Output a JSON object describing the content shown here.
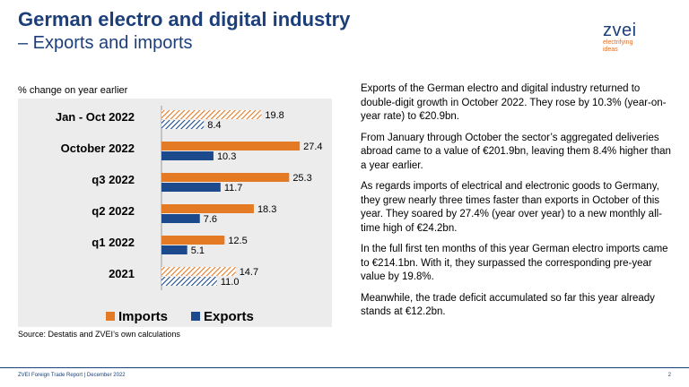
{
  "header": {
    "title": "German electro and digital industry",
    "subtitle": "– Exports and imports"
  },
  "logo": {
    "word": "zvei",
    "tagline_1": "electrifying",
    "tagline_2": "ideas",
    "color": "#1c3f7a",
    "tagline_color": "#e0702a"
  },
  "chart_caption": "% change on year earlier",
  "chart_data": {
    "type": "bar",
    "orientation": "horizontal",
    "categories": [
      "Jan - Oct 2022",
      "October 2022",
      "q3 2022",
      "q2 2022",
      "q1 2022",
      "2021"
    ],
    "series": [
      {
        "name": "Imports",
        "values": [
          19.8,
          27.4,
          25.3,
          18.3,
          12.5,
          14.7
        ],
        "color": "#e57a24",
        "hatched": [
          true,
          false,
          false,
          false,
          false,
          true
        ]
      },
      {
        "name": "Exports",
        "values": [
          8.4,
          10.3,
          11.7,
          7.6,
          5.1,
          11.0
        ],
        "color": "#1c4a8c",
        "hatched": [
          true,
          false,
          false,
          false,
          false,
          true
        ]
      }
    ],
    "xlim": [
      0,
      32
    ],
    "grid": false,
    "legend_position": "bottom",
    "data_labels": true
  },
  "source": "Source: Destatis and ZVEI’s own calculations",
  "paragraphs": [
    "Exports of the German electro and digital industry returned to double-digit growth in October 2022. They rose by 10.3% (year-on-year rate) to €20.9bn.",
    "From January through October the sector’s aggregated deliveries abroad came to a value of €201.9bn, leaving them 8.4% higher than a year earlier.",
    "As regards imports of electrical and electronic goods to Germany, they grew nearly three times faster than exports in October of this year. They soared by 27.4% (year over year) to a new monthly all-time high of €24.2bn.",
    "In the full first ten months of this year German electro imports came to €214.1bn. With it, they surpassed the corresponding pre-year value by 19.8%.",
    "Meanwhile, the trade deficit accumulated so far this year already stands at €12.2bn."
  ],
  "footer": {
    "left": "ZVEI Foreign Trade Report | December 2022",
    "page": "2"
  }
}
